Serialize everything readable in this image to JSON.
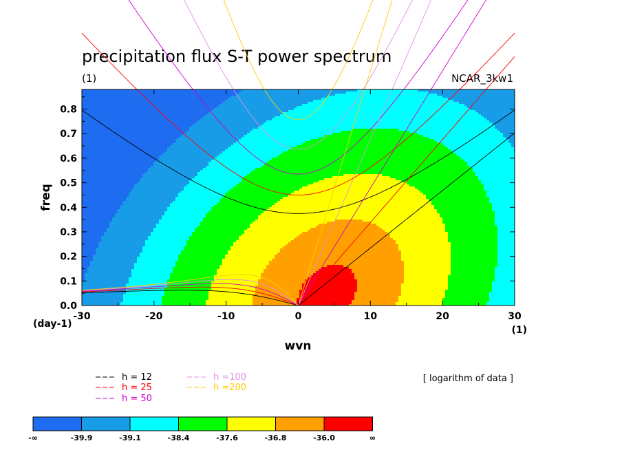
{
  "chart_data": {
    "type": "heatmap",
    "title": "precipitation flux S-T power spectrum",
    "subtitle_left": "(1)",
    "subtitle_right": "NCAR_3kw1",
    "xlabel": "wvn",
    "ylabel": "freq",
    "x_unit_label": "(1)",
    "y_unit_label": "(day-1)",
    "xlim": [
      -30,
      30
    ],
    "ylim": [
      0,
      0.88
    ],
    "x_ticks": [
      -30,
      -20,
      -10,
      0,
      10,
      20,
      30
    ],
    "x_tick_labels": [
      "-30",
      "-20",
      "-10",
      "0",
      "10",
      "20",
      "30"
    ],
    "y_ticks": [
      0,
      0.1,
      0.2,
      0.3,
      0.4,
      0.5,
      0.6,
      0.7,
      0.8
    ],
    "y_tick_labels": [
      "0.0",
      "0.1",
      "0.2",
      "0.3",
      "0.4",
      "0.5",
      "0.6",
      "0.7",
      "0.8"
    ],
    "note": "[ logarithm of data ]",
    "field_levels": [
      -39.9,
      -39.1,
      -38.4,
      -37.6,
      -36.8,
      -36.0
    ],
    "colorbar": {
      "colors": [
        "#1e6cf0",
        "#189ce8",
        "#00ffff",
        "#00ff00",
        "#ffff00",
        "#ffa000",
        "#ff0000"
      ],
      "labels": [
        "-∞",
        "-39.9",
        "-39.1",
        "-38.4",
        "-37.6",
        "-36.8",
        "-36.0",
        "∞"
      ]
    },
    "contour_field": {
      "center_k": 4,
      "center_freq": 0.05,
      "peak": -35.5,
      "scale_k": 11,
      "scale_freq": 0.3,
      "tilt": 0.3
    },
    "dispersion_curves": [
      {
        "name": "h = 12",
        "h": 12,
        "color": "#000000"
      },
      {
        "name": "h = 25",
        "h": 25,
        "color": "#ff0000"
      },
      {
        "name": "h = 50",
        "h": 50,
        "color": "#cc00cc"
      },
      {
        "name": "h =100",
        "h": 100,
        "color": "#e090e0"
      },
      {
        "name": "h =200",
        "h": 200,
        "color": "#ffcc00"
      }
    ]
  }
}
